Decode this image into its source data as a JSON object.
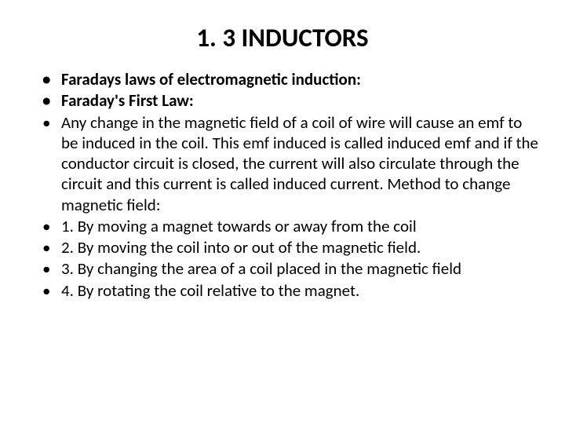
{
  "title": "1. 3 INDUCTORS",
  "bullets": [
    {
      "text": "Faradays laws of electromagnetic induction:",
      "bold": true
    },
    {
      "text": "Faraday's First Law:",
      "bold": true
    },
    {
      "text": "Any change in the magnetic field of a coil of wire will cause an emf to be induced in the coil. This emf induced is called induced emf and if the conductor circuit is closed, the current will also circulate through the circuit and this current is called induced current. Method to change magnetic field:",
      "bold": false
    },
    {
      "text": "1. By moving a magnet towards or away from the coil",
      "bold": false
    },
    {
      "text": "2. By moving the coil into or out of the magnetic field.",
      "bold": false
    },
    {
      "text": "3. By changing the area of a coil placed in the magnetic field",
      "bold": false
    },
    {
      "text": "4. By rotating the coil relative to the magnet.",
      "bold": false
    }
  ],
  "styles": {
    "title_fontsize": 33,
    "body_fontsize": 21,
    "background_color": "#ffffff",
    "text_color": "#000000"
  }
}
